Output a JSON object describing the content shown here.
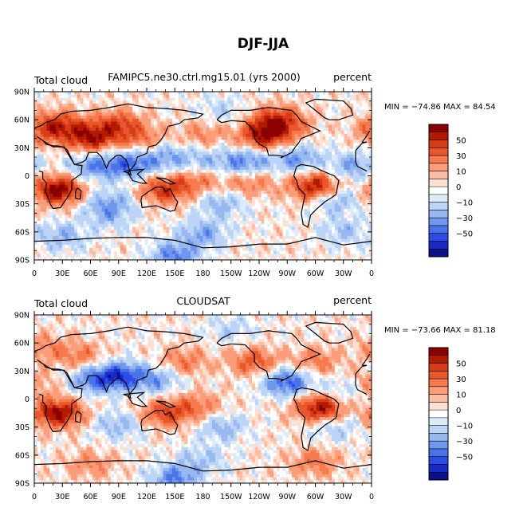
{
  "title": "DJF-JJA",
  "chart_data": [
    {
      "type": "heatmap",
      "left_label": "Total cloud",
      "center_label": "FAMIPC5.ne30.ctrl.mg15.01 (yrs 2000)",
      "units_label": "percent",
      "stats": "MIN = −74.86  MAX =  84.54",
      "min": -74.86,
      "max": 84.54,
      "x_ticks": [
        "0",
        "30E",
        "60E",
        "90E",
        "120E",
        "150E",
        "180",
        "150W",
        "120W",
        "90W",
        "60W",
        "30W",
        "0"
      ],
      "y_ticks": [
        "90N",
        "60N",
        "30N",
        "0",
        "30S",
        "60S",
        "90S"
      ],
      "xlim": [
        0,
        360
      ],
      "ylim": [
        -90,
        90
      ],
      "blobs": [
        {
          "lon": 60,
          "lat": 40,
          "val": 55
        },
        {
          "lon": 90,
          "lat": 55,
          "val": 40
        },
        {
          "lon": 30,
          "lat": 55,
          "val": 35
        },
        {
          "lon": 10,
          "lat": 48,
          "val": 30
        },
        {
          "lon": 115,
          "lat": 38,
          "val": 25
        },
        {
          "lon": 245,
          "lat": 42,
          "val": 55
        },
        {
          "lon": 255,
          "lat": 60,
          "val": 35
        },
        {
          "lon": 270,
          "lat": 55,
          "val": 25
        },
        {
          "lon": 25,
          "lat": -15,
          "val": 70
        },
        {
          "lon": 300,
          "lat": -12,
          "val": 60
        },
        {
          "lon": 140,
          "lat": -15,
          "val": 45
        },
        {
          "lon": 175,
          "lat": -5,
          "val": 25
        },
        {
          "lon": 230,
          "lat": -8,
          "val": 25
        },
        {
          "lon": 80,
          "lat": -45,
          "val": -15
        },
        {
          "lon": 60,
          "lat": 10,
          "val": -35
        },
        {
          "lon": 100,
          "lat": 12,
          "val": -45
        },
        {
          "lon": 140,
          "lat": 20,
          "val": -30
        },
        {
          "lon": 180,
          "lat": 15,
          "val": -20
        },
        {
          "lon": 225,
          "lat": 15,
          "val": -40
        },
        {
          "lon": 280,
          "lat": 18,
          "val": -35
        },
        {
          "lon": 340,
          "lat": 10,
          "val": -30
        },
        {
          "lon": 80,
          "lat": -30,
          "val": -30
        },
        {
          "lon": 200,
          "lat": -30,
          "val": -25
        },
        {
          "lon": 320,
          "lat": -25,
          "val": -30
        },
        {
          "lon": 30,
          "lat": -65,
          "val": -25
        },
        {
          "lon": 180,
          "lat": -62,
          "val": -30
        },
        {
          "lon": 330,
          "lat": -60,
          "val": -20
        },
        {
          "lon": 180,
          "lat": 45,
          "val": 20
        },
        {
          "lon": 200,
          "lat": 70,
          "val": -15
        },
        {
          "lon": 150,
          "lat": -85,
          "val": -40
        }
      ]
    },
    {
      "type": "heatmap",
      "left_label": "Total cloud",
      "center_label": "CLOUDSAT",
      "units_label": "percent",
      "stats": "MIN = −73.66  MAX =  81.18",
      "min": -73.66,
      "max": 81.18,
      "x_ticks": [
        "0",
        "30E",
        "60E",
        "90E",
        "120E",
        "150E",
        "180",
        "150W",
        "120W",
        "90W",
        "60W",
        "30W",
        "0"
      ],
      "y_ticks": [
        "90N",
        "60N",
        "30N",
        "0",
        "30S",
        "60S",
        "90S"
      ],
      "xlim": [
        0,
        360
      ],
      "ylim": [
        -90,
        90
      ],
      "blobs": [
        {
          "lon": 25,
          "lat": -15,
          "val": 65
        },
        {
          "lon": 305,
          "lat": -10,
          "val": 60
        },
        {
          "lon": 140,
          "lat": -15,
          "val": 40
        },
        {
          "lon": 175,
          "lat": -8,
          "val": 25
        },
        {
          "lon": 235,
          "lat": 40,
          "val": 35
        },
        {
          "lon": 300,
          "lat": 40,
          "val": 25
        },
        {
          "lon": 50,
          "lat": 45,
          "val": 25
        },
        {
          "lon": 160,
          "lat": 40,
          "val": 25
        },
        {
          "lon": 10,
          "lat": 55,
          "val": 20
        },
        {
          "lon": 355,
          "lat": 15,
          "val": 25
        },
        {
          "lon": 90,
          "lat": 25,
          "val": -55
        },
        {
          "lon": 60,
          "lat": 20,
          "val": -35
        },
        {
          "lon": 130,
          "lat": 20,
          "val": -30
        },
        {
          "lon": 270,
          "lat": 18,
          "val": -50
        },
        {
          "lon": 335,
          "lat": 10,
          "val": -25
        },
        {
          "lon": 200,
          "lat": -30,
          "val": -25
        },
        {
          "lon": 90,
          "lat": -28,
          "val": -25
        },
        {
          "lon": 320,
          "lat": -30,
          "val": -20
        },
        {
          "lon": 180,
          "lat": -65,
          "val": -20
        },
        {
          "lon": 60,
          "lat": -70,
          "val": 20
        },
        {
          "lon": 300,
          "lat": -68,
          "val": 25
        },
        {
          "lon": 210,
          "lat": 75,
          "val": -15
        },
        {
          "lon": 150,
          "lat": -85,
          "val": -40
        }
      ]
    }
  ],
  "colorbar": {
    "labels": [
      "50",
      "30",
      "10",
      "0",
      "−10",
      "−30",
      "−50"
    ],
    "colors": [
      "#8b0000",
      "#b31b00",
      "#d73c16",
      "#e8582c",
      "#f57a4d",
      "#fb9d79",
      "#fcbda4",
      "#fee0d2",
      "#ffffff",
      "#dcebfa",
      "#bcd4f5",
      "#98b9f0",
      "#6f97ec",
      "#4a73ea",
      "#2c4de5",
      "#1a29c8",
      "#0d0f8b"
    ]
  },
  "levels": [
    -70,
    -60,
    -50,
    -40,
    -30,
    -20,
    -10,
    -5,
    0,
    5,
    10,
    20,
    30,
    40,
    50,
    60,
    70
  ]
}
